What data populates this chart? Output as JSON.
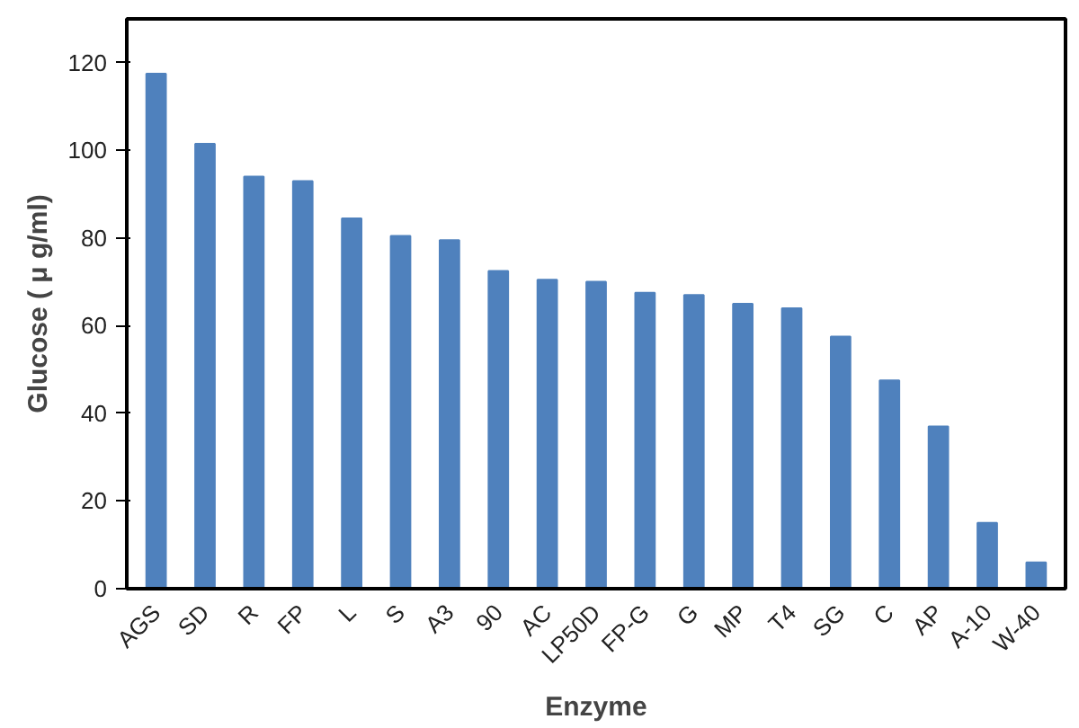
{
  "chart_data": {
    "type": "bar",
    "xlabel": "Enzyme",
    "ylabel": "Glucose ( μ g/ml)",
    "categories": [
      "AGS",
      "SD",
      "R",
      "FP",
      "L",
      "S",
      "A3",
      "90",
      "AC",
      "LP50D",
      "FP-G",
      "G",
      "MP",
      "T4",
      "SG",
      "C",
      "AP",
      "A-10",
      "W-40"
    ],
    "values": [
      117.5,
      101.5,
      94,
      93,
      84.5,
      80.5,
      79.5,
      72.5,
      70.5,
      70,
      67.5,
      67,
      65,
      64,
      57.5,
      47.5,
      37,
      15,
      6
    ],
    "color": "#4f81bd",
    "ylim": [
      0,
      130
    ],
    "yticks": [
      0,
      20,
      40,
      60,
      80,
      100,
      120
    ],
    "grid": false
  }
}
